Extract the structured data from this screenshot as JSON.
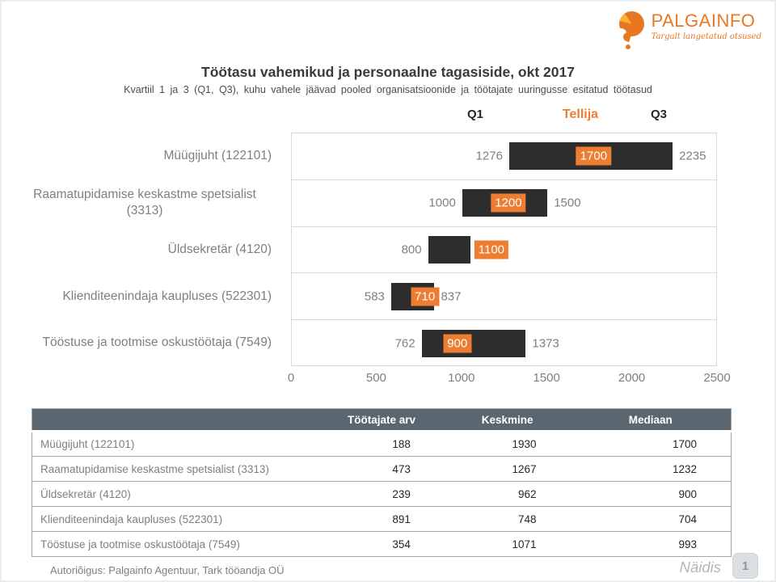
{
  "logo": {
    "name": "PALGAINFO",
    "tagline": "Targalt langetatud otsused"
  },
  "title": "Töötasu vahemikud ja personaalne tagasiside, okt 2017",
  "subtitle": "Kvartiil 1 ja 3 (Q1, Q3), kuhu vahele jäävad pooled organisatsioonide ja töötajate uuringusse esitatud töötasud",
  "colors": {
    "accent_orange": "#ED7D31",
    "bar_dark": "#2D2D2D",
    "table_header_bg": "#5B6770",
    "logo_orange": "#E87722",
    "logo_yellow": "#F9B233"
  },
  "chart_data": {
    "type": "bar",
    "orientation": "horizontal",
    "headers": {
      "q1": "Q1",
      "tellija": "Tellija",
      "q3": "Q3"
    },
    "xlim": [
      0,
      2500
    ],
    "x_ticks": [
      "0",
      "500",
      "1000",
      "1500",
      "2000",
      "2500"
    ],
    "grid": "row-separators",
    "rows": [
      {
        "label": "Müügijuht (122101)",
        "q1": 1276,
        "q3": 2235,
        "tellija": 1700,
        "q1_label": "1276",
        "q3_label": "2235",
        "tellija_label": "1700"
      },
      {
        "label": "Raamatupidamise keskastme spetsialist (3313)",
        "q1": 1000,
        "q3": 1500,
        "tellija": 1200,
        "q1_label": "1000",
        "q3_label": "1500",
        "tellija_label": "1200"
      },
      {
        "label": "Üldsekretär (4120)",
        "q1": 800,
        "q3": 1050,
        "tellija": 1100,
        "q1_label": "800",
        "q3_label": "",
        "tellija_label": "1100"
      },
      {
        "label": "Klienditeenindaja kaupluses (522301)",
        "q1": 583,
        "q3": 837,
        "tellija": 710,
        "q1_label": "583",
        "q3_label": "837",
        "tellija_label": "710"
      },
      {
        "label": "Tööstuse ja tootmise oskustöötaja (7549)",
        "q1": 762,
        "q3": 1373,
        "tellija": 900,
        "q1_label": "762",
        "q3_label": "1373",
        "tellija_label": "900"
      }
    ]
  },
  "table": {
    "headers": [
      "",
      "Töötajate arv",
      "Keskmine",
      "Mediaan"
    ],
    "rows": [
      {
        "label": "Müügijuht (122101)",
        "values": [
          "188",
          "1930",
          "1700"
        ]
      },
      {
        "label": "Raamatupidamise keskastme spetsialist (3313)",
        "values": [
          "473",
          "1267",
          "1232"
        ]
      },
      {
        "label": "Üldsekretär (4120)",
        "values": [
          "239",
          "962",
          "900"
        ]
      },
      {
        "label": "Klienditeenindaja kaupluses (522301)",
        "values": [
          "891",
          "748",
          "704"
        ]
      },
      {
        "label": "Tööstuse ja tootmise oskustöötaja (7549)",
        "values": [
          "354",
          "1071",
          "993"
        ]
      }
    ]
  },
  "footer": {
    "copyright": "Autoriõigus: Palgainfo Agentuur, Tark tööandja OÜ",
    "watermark": "Näidis",
    "page_number": "1"
  }
}
